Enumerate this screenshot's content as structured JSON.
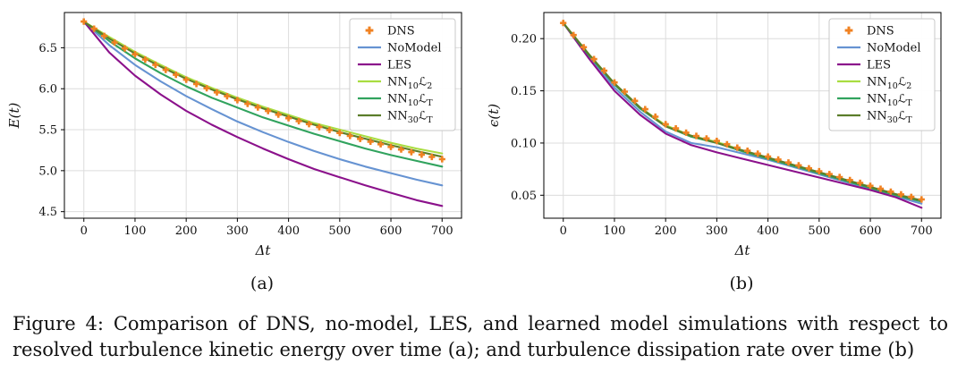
{
  "figure": {
    "caption": "Figure 4: Comparison of DNS, no-model, LES, and learned model simulations with respect to resolved turbulence kinetic energy over time (a); and turbulence dissipation rate over time (b)",
    "sublabels": [
      "(a)",
      "(b)"
    ]
  },
  "colors": {
    "dns": "#f08222",
    "nomodel": "#6693d2",
    "les": "#8b118b",
    "nn10l2": "#a9dd41",
    "nn10lt": "#31a35e",
    "nn30lt": "#5b7d2a",
    "grid": "#dcdcdc",
    "frame": "#000000",
    "legend_border": "#c8c8c8"
  },
  "chart_data": [
    {
      "type": "line",
      "title": "",
      "xlabel": "Δt",
      "ylabel": "E(t)",
      "xlim": [
        -38,
        738
      ],
      "ylim": [
        4.42,
        6.93
      ],
      "xticks": [
        0,
        100,
        200,
        300,
        400,
        500,
        600,
        700
      ],
      "yticks": [
        4.5,
        5.0,
        5.5,
        6.0,
        6.5
      ],
      "ytick_decimals": 1,
      "grid": true,
      "legend_position": "upper right",
      "x": [
        0,
        50,
        100,
        150,
        200,
        250,
        300,
        350,
        400,
        450,
        500,
        550,
        600,
        650,
        700
      ],
      "series": [
        {
          "id": "dns",
          "label": "DNS",
          "parts": [
            [
              "n",
              "DNS"
            ]
          ],
          "color": "#f08222",
          "marker": "plus",
          "values": [
            6.82,
            6.6,
            6.42,
            6.26,
            6.11,
            5.98,
            5.86,
            5.75,
            5.64,
            5.55,
            5.46,
            5.37,
            5.29,
            5.21,
            5.14
          ]
        },
        {
          "id": "nomodel",
          "label": "NoModel",
          "parts": [
            [
              "n",
              "NoModel"
            ]
          ],
          "color": "#6693d2",
          "values": [
            6.82,
            6.53,
            6.29,
            6.09,
            5.91,
            5.75,
            5.6,
            5.47,
            5.35,
            5.24,
            5.14,
            5.05,
            4.97,
            4.89,
            4.82
          ]
        },
        {
          "id": "les",
          "label": "LES",
          "parts": [
            [
              "n",
              "LES"
            ]
          ],
          "color": "#8b118b",
          "values": [
            6.82,
            6.44,
            6.16,
            5.93,
            5.73,
            5.56,
            5.41,
            5.27,
            5.14,
            5.02,
            4.92,
            4.82,
            4.73,
            4.64,
            4.57
          ]
        },
        {
          "id": "nn10l2",
          "label": "NN₁₀ℒ₂",
          "parts": [
            [
              "n",
              "NN"
            ],
            [
              "s",
              "10"
            ],
            [
              "n",
              "ℒ"
            ],
            [
              "s",
              "2"
            ]
          ],
          "color": "#a9dd41",
          "values": [
            6.82,
            6.63,
            6.45,
            6.29,
            6.14,
            6.01,
            5.89,
            5.78,
            5.68,
            5.58,
            5.5,
            5.42,
            5.34,
            5.27,
            5.21
          ]
        },
        {
          "id": "nn10lt",
          "label": "NN₁₀ℒT",
          "parts": [
            [
              "n",
              "NN"
            ],
            [
              "s",
              "10"
            ],
            [
              "n",
              "ℒ"
            ],
            [
              "s",
              "T"
            ]
          ],
          "color": "#31a35e",
          "values": [
            6.82,
            6.58,
            6.37,
            6.19,
            6.03,
            5.89,
            5.77,
            5.65,
            5.55,
            5.45,
            5.36,
            5.27,
            5.19,
            5.12,
            5.05
          ]
        },
        {
          "id": "nn30lt",
          "label": "NN₃₀ℒT",
          "parts": [
            [
              "n",
              "NN"
            ],
            [
              "s",
              "30"
            ],
            [
              "n",
              "ℒ"
            ],
            [
              "s",
              "T"
            ]
          ],
          "color": "#5b7d2a",
          "values": [
            6.82,
            6.61,
            6.43,
            6.27,
            6.12,
            5.99,
            5.87,
            5.76,
            5.66,
            5.56,
            5.47,
            5.39,
            5.31,
            5.24,
            5.17
          ]
        }
      ]
    },
    {
      "type": "line",
      "title": "",
      "xlabel": "Δt",
      "ylabel": "ϵ(t)",
      "xlim": [
        -38,
        738
      ],
      "ylim": [
        0.028,
        0.225
      ],
      "xticks": [
        0,
        100,
        200,
        300,
        400,
        500,
        600,
        700
      ],
      "yticks": [
        0.05,
        0.1,
        0.15,
        0.2
      ],
      "ytick_decimals": 2,
      "grid": true,
      "legend_position": "upper right",
      "x": [
        0,
        50,
        100,
        150,
        200,
        250,
        300,
        350,
        400,
        450,
        500,
        550,
        600,
        650,
        700
      ],
      "series": [
        {
          "id": "dns",
          "label": "DNS",
          "parts": [
            [
              "n",
              "DNS"
            ]
          ],
          "color": "#f08222",
          "marker": "plus",
          "values": [
            0.215,
            0.186,
            0.158,
            0.136,
            0.118,
            0.108,
            0.102,
            0.094,
            0.087,
            0.08,
            0.073,
            0.066,
            0.059,
            0.052,
            0.046
          ]
        },
        {
          "id": "nomodel",
          "label": "NoModel",
          "parts": [
            [
              "n",
              "NoModel"
            ]
          ],
          "color": "#6693d2",
          "values": [
            0.215,
            0.183,
            0.153,
            0.13,
            0.111,
            0.1,
            0.096,
            0.09,
            0.084,
            0.077,
            0.07,
            0.063,
            0.056,
            0.049,
            0.042
          ]
        },
        {
          "id": "les",
          "label": "LES",
          "parts": [
            [
              "n",
              "LES"
            ]
          ],
          "color": "#8b118b",
          "values": [
            0.215,
            0.181,
            0.15,
            0.127,
            0.109,
            0.098,
            0.091,
            0.085,
            0.079,
            0.073,
            0.067,
            0.061,
            0.055,
            0.048,
            0.038
          ]
        },
        {
          "id": "nn10l2",
          "label": "NN₁₀ℒ₂",
          "parts": [
            [
              "n",
              "NN"
            ],
            [
              "s",
              "10"
            ],
            [
              "n",
              "ℒ"
            ],
            [
              "s",
              "2"
            ]
          ],
          "color": "#a9dd41",
          "values": [
            0.215,
            0.185,
            0.157,
            0.134,
            0.117,
            0.107,
            0.101,
            0.093,
            0.086,
            0.079,
            0.072,
            0.065,
            0.058,
            0.051,
            0.044
          ]
        },
        {
          "id": "nn10lt",
          "label": "NN₁₀ℒT",
          "parts": [
            [
              "n",
              "NN"
            ],
            [
              "s",
              "10"
            ],
            [
              "n",
              "ℒ"
            ],
            [
              "s",
              "T"
            ]
          ],
          "color": "#31a35e",
          "values": [
            0.215,
            0.184,
            0.156,
            0.133,
            0.116,
            0.106,
            0.1,
            0.092,
            0.085,
            0.078,
            0.071,
            0.064,
            0.057,
            0.05,
            0.044
          ]
        },
        {
          "id": "nn30lt",
          "label": "NN₃₀ℒT",
          "parts": [
            [
              "n",
              "NN"
            ],
            [
              "s",
              "30"
            ],
            [
              "n",
              "ℒ"
            ],
            [
              "s",
              "T"
            ]
          ],
          "color": "#5b7d2a",
          "values": [
            0.215,
            0.185,
            0.157,
            0.134,
            0.116,
            0.107,
            0.1,
            0.093,
            0.086,
            0.079,
            0.072,
            0.065,
            0.058,
            0.051,
            0.045
          ]
        }
      ]
    }
  ]
}
